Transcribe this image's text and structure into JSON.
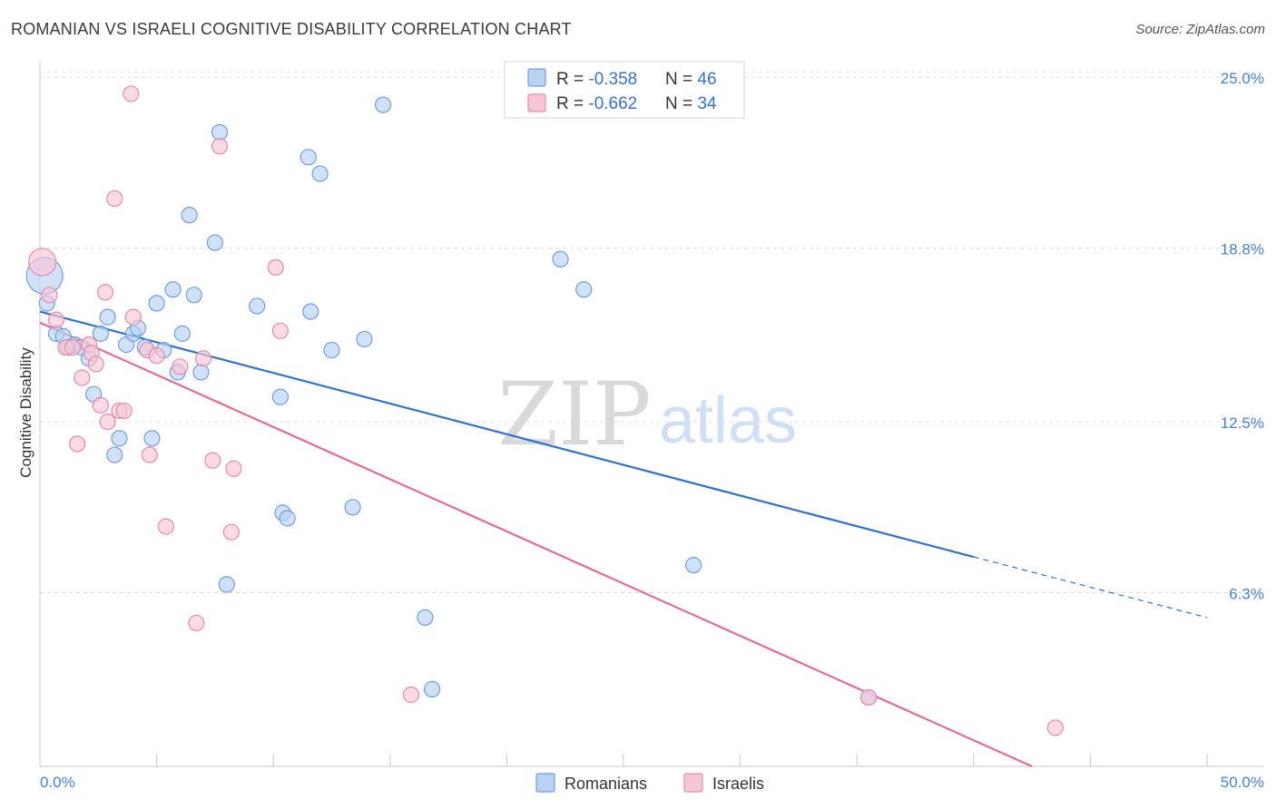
{
  "title": "ROMANIAN VS ISRAELI COGNITIVE DISABILITY CORRELATION CHART",
  "source": "Source: ZipAtlas.com",
  "watermark": {
    "zip": "ZIP",
    "atlas": "atlas"
  },
  "colors": {
    "romanians": "#6f9fe0",
    "romanians_fill": "#b9d2f4",
    "romanians_line": "#2f72cc",
    "israelis": "#e98aab",
    "israelis_fill": "#f7c6d6",
    "israelis_line": "#e06d98",
    "tick_text": "#4a7fd0"
  },
  "legend": {
    "rows": [
      {
        "r_label": "R = ",
        "r_value": "-0.358",
        "n_label": "N = ",
        "n_value": "46"
      },
      {
        "r_label": "R = ",
        "r_value": "-0.662",
        "n_label": "N = ",
        "n_value": "34"
      }
    ]
  },
  "bottom_legend": [
    "Romanians",
    "Israelis"
  ],
  "chart_data": {
    "type": "scatter",
    "title": "ROMANIAN VS ISRAELI COGNITIVE DISABILITY CORRELATION CHART",
    "xlabel": "",
    "ylabel": "Cognitive Disability",
    "xlim": [
      0,
      50
    ],
    "ylim": [
      0,
      25.5
    ],
    "x_tick_labels": [
      "0.0%",
      "50.0%"
    ],
    "y_ticks": [
      6.3,
      12.5,
      18.8,
      25.0
    ],
    "y_tick_labels": [
      "6.3%",
      "12.5%",
      "18.8%",
      "25.0%"
    ],
    "grid": true,
    "legend_position": "top-center",
    "series": [
      {
        "name": "Romanians",
        "points": [
          [
            0.2,
            17.8
          ],
          [
            0.3,
            16.8
          ],
          [
            0.7,
            15.7
          ],
          [
            1.0,
            15.6
          ],
          [
            1.2,
            15.2
          ],
          [
            1.5,
            15.3
          ],
          [
            1.8,
            15.2
          ],
          [
            2.1,
            14.8
          ],
          [
            2.3,
            13.5
          ],
          [
            2.6,
            15.7
          ],
          [
            2.9,
            16.3
          ],
          [
            3.2,
            11.3
          ],
          [
            3.4,
            11.9
          ],
          [
            3.7,
            15.3
          ],
          [
            4.0,
            15.7
          ],
          [
            4.2,
            15.9
          ],
          [
            4.5,
            15.2
          ],
          [
            4.8,
            11.9
          ],
          [
            5.0,
            16.8
          ],
          [
            5.3,
            15.1
          ],
          [
            5.7,
            17.3
          ],
          [
            5.9,
            14.3
          ],
          [
            6.1,
            15.7
          ],
          [
            6.4,
            20.0
          ],
          [
            6.6,
            17.1
          ],
          [
            6.9,
            14.3
          ],
          [
            7.5,
            19.0
          ],
          [
            7.7,
            23.0
          ],
          [
            8.0,
            6.6
          ],
          [
            9.3,
            16.7
          ],
          [
            10.3,
            13.4
          ],
          [
            10.4,
            9.2
          ],
          [
            10.6,
            9.0
          ],
          [
            11.5,
            22.1
          ],
          [
            11.6,
            16.5
          ],
          [
            12.0,
            21.5
          ],
          [
            12.5,
            15.1
          ],
          [
            13.4,
            9.4
          ],
          [
            13.9,
            15.5
          ],
          [
            14.7,
            24.0
          ],
          [
            16.5,
            5.4
          ],
          [
            16.8,
            2.8
          ],
          [
            22.3,
            18.4
          ],
          [
            23.3,
            17.3
          ],
          [
            28.0,
            7.3
          ],
          [
            35.5,
            2.5
          ]
        ],
        "trend": {
          "x": [
            0,
            40
          ],
          "y": [
            16.5,
            7.6
          ]
        },
        "trend_dashed": {
          "x": [
            40,
            50
          ],
          "y": [
            7.6,
            5.4
          ]
        }
      },
      {
        "name": "Israelis",
        "points": [
          [
            0.1,
            18.3
          ],
          [
            0.4,
            17.1
          ],
          [
            0.7,
            16.2
          ],
          [
            1.1,
            15.2
          ],
          [
            1.4,
            15.2
          ],
          [
            1.6,
            11.7
          ],
          [
            1.8,
            14.1
          ],
          [
            2.1,
            15.3
          ],
          [
            2.2,
            15.0
          ],
          [
            2.4,
            14.6
          ],
          [
            2.6,
            13.1
          ],
          [
            2.8,
            17.2
          ],
          [
            2.9,
            12.5
          ],
          [
            3.2,
            20.6
          ],
          [
            3.4,
            12.9
          ],
          [
            3.6,
            12.9
          ],
          [
            3.9,
            24.4
          ],
          [
            4.0,
            16.3
          ],
          [
            4.6,
            15.1
          ],
          [
            4.7,
            11.3
          ],
          [
            5.0,
            14.9
          ],
          [
            5.4,
            8.7
          ],
          [
            6.0,
            14.5
          ],
          [
            6.7,
            5.2
          ],
          [
            7.0,
            14.8
          ],
          [
            7.4,
            11.1
          ],
          [
            7.7,
            22.5
          ],
          [
            8.2,
            8.5
          ],
          [
            8.3,
            10.8
          ],
          [
            10.1,
            18.1
          ],
          [
            10.3,
            15.8
          ],
          [
            15.9,
            2.6
          ],
          [
            35.5,
            2.5
          ],
          [
            43.5,
            1.4
          ]
        ],
        "trend": {
          "x": [
            0,
            42.5
          ],
          "y": [
            16.1,
            0
          ]
        }
      }
    ]
  }
}
